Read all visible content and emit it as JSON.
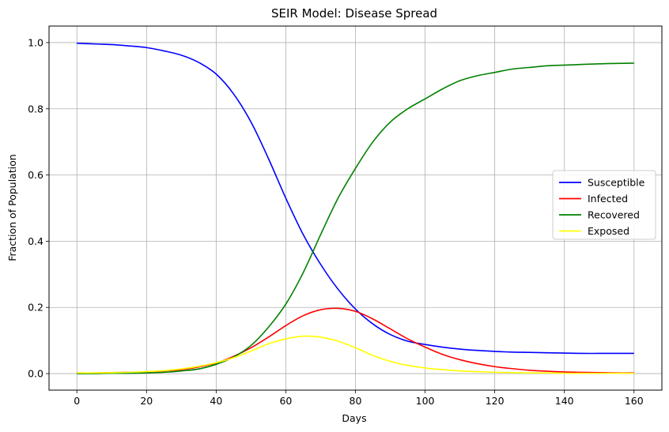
{
  "chart_data": {
    "type": "line",
    "title": "SEIR Model: Disease Spread",
    "xlabel": "Days",
    "ylabel": "Fraction of Population",
    "xlim": [
      -8,
      168
    ],
    "ylim": [
      -0.05,
      1.05
    ],
    "xticks": [
      0,
      20,
      40,
      60,
      80,
      100,
      120,
      140,
      160
    ],
    "yticks": [
      0.0,
      0.2,
      0.4,
      0.6,
      0.8,
      1.0
    ],
    "xtick_labels": [
      "0",
      "20",
      "40",
      "60",
      "80",
      "100",
      "120",
      "140",
      "160"
    ],
    "ytick_labels": [
      "0.0",
      "0.2",
      "0.4",
      "0.6",
      "0.8",
      "1.0"
    ],
    "grid": true,
    "legend_position": "center-right",
    "x": [
      0,
      5,
      10,
      15,
      20,
      25,
      30,
      35,
      40,
      45,
      50,
      55,
      60,
      65,
      70,
      75,
      80,
      85,
      90,
      95,
      100,
      105,
      110,
      115,
      120,
      125,
      130,
      135,
      140,
      145,
      150,
      155,
      160
    ],
    "series": [
      {
        "name": "Susceptible",
        "color": "#0000ff",
        "values": [
          0.998,
          0.996,
          0.994,
          0.99,
          0.985,
          0.975,
          0.962,
          0.94,
          0.905,
          0.845,
          0.76,
          0.65,
          0.53,
          0.42,
          0.33,
          0.255,
          0.195,
          0.15,
          0.118,
          0.098,
          0.088,
          0.08,
          0.074,
          0.07,
          0.067,
          0.065,
          0.064,
          0.063,
          0.062,
          0.061,
          0.061,
          0.061,
          0.061
        ]
      },
      {
        "name": "Infected",
        "color": "#ff0000",
        "values": [
          0.002,
          0.002,
          0.003,
          0.004,
          0.005,
          0.008,
          0.012,
          0.02,
          0.032,
          0.052,
          0.078,
          0.11,
          0.145,
          0.175,
          0.193,
          0.197,
          0.188,
          0.165,
          0.135,
          0.105,
          0.08,
          0.058,
          0.042,
          0.03,
          0.021,
          0.015,
          0.01,
          0.007,
          0.005,
          0.004,
          0.003,
          0.002,
          0.002
        ]
      },
      {
        "name": "Recovered",
        "color": "#008000",
        "values": [
          0.0,
          0.0,
          0.001,
          0.001,
          0.002,
          0.004,
          0.008,
          0.014,
          0.028,
          0.05,
          0.085,
          0.14,
          0.21,
          0.305,
          0.42,
          0.53,
          0.62,
          0.7,
          0.76,
          0.8,
          0.83,
          0.86,
          0.885,
          0.9,
          0.91,
          0.92,
          0.925,
          0.93,
          0.932,
          0.934,
          0.936,
          0.937,
          0.938
        ]
      },
      {
        "name": "Exposed",
        "color": "#ffff00",
        "values": [
          0.002,
          0.002,
          0.003,
          0.004,
          0.006,
          0.009,
          0.014,
          0.022,
          0.033,
          0.048,
          0.068,
          0.09,
          0.105,
          0.113,
          0.11,
          0.098,
          0.078,
          0.055,
          0.037,
          0.025,
          0.017,
          0.012,
          0.008,
          0.006,
          0.004,
          0.003,
          0.002,
          0.002,
          0.001,
          0.001,
          0.001,
          0.001,
          0.001
        ]
      }
    ]
  }
}
